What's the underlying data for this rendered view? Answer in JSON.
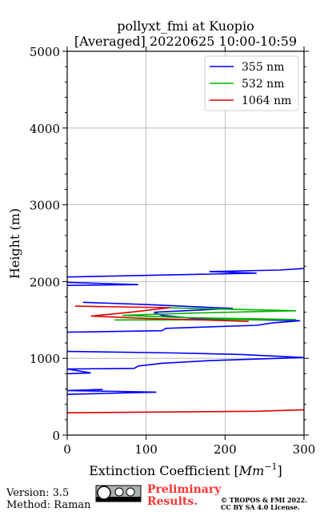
{
  "chart_data": {
    "type": "line",
    "title": [
      "pollyxt_fmi at Kuopio",
      "[Averaged] 20220625 10:00-10:59"
    ],
    "x_label": [
      "Extinction Coefficient [",
      "Mm",
      "−1",
      "]"
    ],
    "y_label": "Height (m)",
    "xlim": [
      0,
      300
    ],
    "xticks": [
      0,
      100,
      200,
      300
    ],
    "ylim": [
      0,
      5000
    ],
    "yticks": [
      0,
      1000,
      2000,
      3000,
      4000,
      5000
    ],
    "yminorticks": [
      200,
      400,
      600,
      800,
      1200,
      1400,
      1600,
      1800,
      2200,
      2400,
      2600,
      2800,
      3200,
      3400,
      3600,
      3800,
      4200,
      4400,
      4600,
      4800
    ],
    "grid": true,
    "legend": "upper right",
    "series": [
      {
        "name": "355 nm",
        "color": "#0000ff",
        "y": [
          530,
          560,
          580,
          595,
          null,
          800,
          810,
          860,
          870,
          900,
          935,
          970,
          1010,
          1050,
          1070,
          1090,
          null,
          1340,
          1360,
          1390,
          1430,
          1460,
          1490,
          1520,
          1560,
          1600,
          1650,
          1700,
          1730,
          null,
          1950,
          1960,
          1990,
          null,
          2060,
          2080,
          2110,
          2130,
          2150,
          2170
        ],
        "values": [
          0,
          113,
          0,
          45,
          null,
          0,
          30,
          0,
          85,
          90,
          120,
          180,
          300,
          220,
          135,
          0,
          null,
          0,
          120,
          125,
          240,
          260,
          295,
          160,
          120,
          110,
          210,
          100,
          20,
          null,
          0,
          90,
          0,
          null,
          0,
          100,
          240,
          180,
          270,
          300
        ]
      },
      {
        "name": "532 nm",
        "color": "#00b400",
        "y": [
          1500,
          1505,
          1530,
          1560,
          1590,
          1620,
          1660
        ],
        "values": [
          60,
          290,
          150,
          70,
          160,
          290,
          120
        ]
      },
      {
        "name": "1064 nm",
        "color": "#dc0000",
        "y": [
          290,
          310,
          330,
          null,
          1480,
          1500,
          1520,
          1550,
          1600,
          1660,
          1680
        ],
        "values": [
          0,
          240,
          300,
          null,
          230,
          170,
          100,
          30,
          80,
          130,
          10
        ]
      }
    ],
    "footer": {
      "version": "Version: 3.5",
      "method": "Method: Raman",
      "preliminary": [
        "Preliminary",
        "Results."
      ],
      "copyright": [
        "© TROPOS & FMI 2022.",
        "CC BY SA 4.0 License."
      ]
    }
  }
}
